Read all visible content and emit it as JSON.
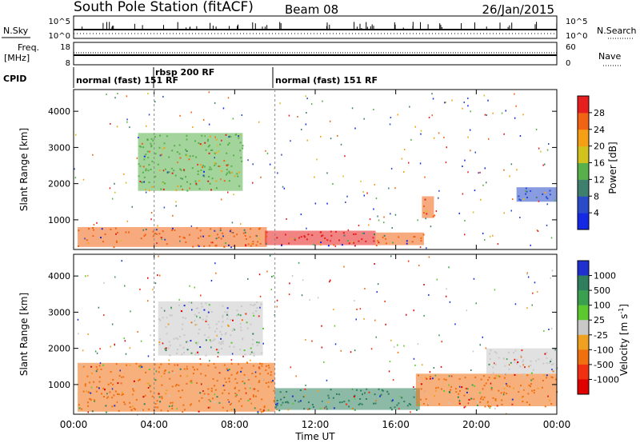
{
  "header": {
    "station": "South Pole Station (fitACF)",
    "beam": "Beam 08",
    "date": "26/Jan/2015"
  },
  "nsky_panel": {
    "left_label": "N.Sky",
    "right_label": "N.Search",
    "left_ticks": [
      "10^5",
      "10^0"
    ],
    "right_ticks": [
      "10^5",
      "10^0"
    ]
  },
  "freq_panel": {
    "left_label_1": "Freq.",
    "left_label_2": "[MHz]",
    "right_label": "Nave",
    "left_ticks": [
      18,
      8
    ],
    "right_ticks": [
      60,
      0
    ]
  },
  "cpid": {
    "label": "CPID",
    "segments": [
      {
        "label": "normal (fast) 151 RF",
        "start_hr": 0.0
      },
      {
        "label": "rbsp 200 RF",
        "start_hr": 4.0
      },
      {
        "label": "normal (fast) 151 RF",
        "start_hr": 10.0
      }
    ],
    "overlap_label": "151 RF"
  },
  "chart_data": [
    {
      "type": "heatmap",
      "name": "power",
      "ylabel": "Slant Range [km]",
      "yticks": [
        1000,
        2000,
        3000,
        4000
      ],
      "ylim": [
        180,
        4600
      ],
      "colorbar": {
        "label": "Power [dB]",
        "ticks": [
          4,
          8,
          12,
          16,
          20,
          24,
          28
        ],
        "colors": [
          "#1428e6",
          "#2a4bc8",
          "#3f7f6e",
          "#58b04a",
          "#d2c21e",
          "#f5a014",
          "#f06414",
          "#e61e1e"
        ]
      },
      "regions": [
        {
          "t0": 0.2,
          "t1": 9.6,
          "r0": 250,
          "r1": 800,
          "color": "#f06414"
        },
        {
          "t0": 3.2,
          "t1": 8.4,
          "r0": 1800,
          "r1": 3400,
          "color": "#58b04a"
        },
        {
          "t0": 9.5,
          "t1": 15.0,
          "r0": 300,
          "r1": 700,
          "color": "#e61e1e"
        },
        {
          "t0": 15.0,
          "t1": 17.4,
          "r0": 300,
          "r1": 650,
          "color": "#f06414"
        },
        {
          "t0": 17.3,
          "t1": 17.9,
          "r0": 1050,
          "r1": 1650,
          "color": "#f06414"
        },
        {
          "t0": 22.0,
          "t1": 24.0,
          "r0": 1500,
          "r1": 1900,
          "color": "#2a4bc8"
        }
      ]
    },
    {
      "type": "heatmap",
      "name": "velocity",
      "ylabel": "Slant Range [km]",
      "yticks": [
        1000,
        2000,
        3000,
        4000
      ],
      "ylim": [
        180,
        4600
      ],
      "colorbar": {
        "label": "Velocity [m s^-1]",
        "ticks": [
          1000,
          500,
          100,
          25,
          -25,
          -100,
          -500,
          -1000
        ],
        "colors": [
          "#2030d0",
          "#2f7f5f",
          "#3aa050",
          "#5cc830",
          "#c8c8c8",
          "#f0a020",
          "#f07010",
          "#f03010",
          "#e00000"
        ]
      },
      "regions": [
        {
          "t0": 0.2,
          "t1": 10.0,
          "r0": 250,
          "r1": 1600,
          "color": "#f07010"
        },
        {
          "t0": 4.2,
          "t1": 9.4,
          "r0": 1800,
          "r1": 3300,
          "color": "#c8c8c8"
        },
        {
          "t0": 10.0,
          "t1": 17.2,
          "r0": 300,
          "r1": 900,
          "color": "#2f7f5f"
        },
        {
          "t0": 17.0,
          "t1": 24.0,
          "r0": 400,
          "r1": 1300,
          "color": "#f07010"
        },
        {
          "t0": 20.5,
          "t1": 24.0,
          "r0": 1300,
          "r1": 2000,
          "color": "#c8c8c8"
        }
      ]
    }
  ],
  "time_axis": {
    "xlabel": "Time UT",
    "ticks": [
      "00:00",
      "04:00",
      "08:00",
      "12:00",
      "16:00",
      "20:00",
      "00:00"
    ]
  }
}
